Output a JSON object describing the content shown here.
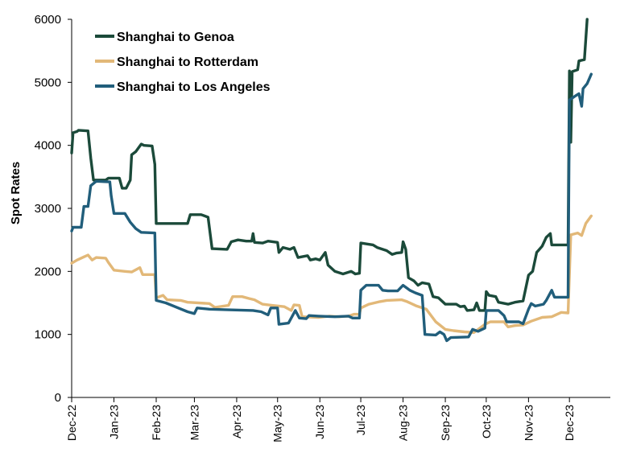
{
  "chart_data": {
    "type": "line",
    "title": "",
    "xlabel": "",
    "ylabel": "Spot Rates",
    "ylim": [
      0,
      6000
    ],
    "yticks": [
      0,
      1000,
      2000,
      3000,
      4000,
      5000,
      6000
    ],
    "xlim": [
      "2022-12-01",
      "2023-12-31"
    ],
    "xticks": [
      {
        "date": "2022-12-01",
        "label": "Dec-22"
      },
      {
        "date": "2023-01-01",
        "label": "Jan-23"
      },
      {
        "date": "2023-02-01",
        "label": "Feb-23"
      },
      {
        "date": "2023-03-01",
        "label": "Mar-23"
      },
      {
        "date": "2023-04-01",
        "label": "Apr-23"
      },
      {
        "date": "2023-05-01",
        "label": "May-23"
      },
      {
        "date": "2023-06-01",
        "label": "Jun-23"
      },
      {
        "date": "2023-07-01",
        "label": "Jul-23"
      },
      {
        "date": "2023-08-01",
        "label": "Aug-23"
      },
      {
        "date": "2023-09-01",
        "label": "Sep-23"
      },
      {
        "date": "2023-10-01",
        "label": "Oct-23"
      },
      {
        "date": "2023-11-01",
        "label": "Nov-23"
      },
      {
        "date": "2023-12-01",
        "label": "Dec-23"
      }
    ],
    "grid": false,
    "legend": "top-left",
    "series": [
      {
        "name": "Shanghai to Genoa",
        "color": "#1b4a3a",
        "points": [
          [
            "2022-12-01",
            3880
          ],
          [
            "2022-12-02",
            4200
          ],
          [
            "2022-12-05",
            4220
          ],
          [
            "2022-12-06",
            4240
          ],
          [
            "2022-12-13",
            4230
          ],
          [
            "2022-12-15",
            3800
          ],
          [
            "2022-12-17",
            3450
          ],
          [
            "2022-12-26",
            3450
          ],
          [
            "2022-12-28",
            3480
          ],
          [
            "2023-01-05",
            3480
          ],
          [
            "2023-01-07",
            3320
          ],
          [
            "2023-01-10",
            3320
          ],
          [
            "2023-01-13",
            3450
          ],
          [
            "2023-01-14",
            3850
          ],
          [
            "2023-01-17",
            3900
          ],
          [
            "2023-01-21",
            4020
          ],
          [
            "2023-01-23",
            4000
          ],
          [
            "2023-01-29",
            3990
          ],
          [
            "2023-01-31",
            3700
          ],
          [
            "2023-02-01",
            2760
          ],
          [
            "2023-02-24",
            2760
          ],
          [
            "2023-02-26",
            2900
          ],
          [
            "2023-03-06",
            2900
          ],
          [
            "2023-03-11",
            2860
          ],
          [
            "2023-03-14",
            2360
          ],
          [
            "2023-03-25",
            2350
          ],
          [
            "2023-03-28",
            2470
          ],
          [
            "2023-04-02",
            2500
          ],
          [
            "2023-04-08",
            2480
          ],
          [
            "2023-04-12",
            2480
          ],
          [
            "2023-04-13",
            2600
          ],
          [
            "2023-04-14",
            2460
          ],
          [
            "2023-04-20",
            2450
          ],
          [
            "2023-04-24",
            2480
          ],
          [
            "2023-05-01",
            2460
          ],
          [
            "2023-05-02",
            2300
          ],
          [
            "2023-05-05",
            2380
          ],
          [
            "2023-05-10",
            2350
          ],
          [
            "2023-05-13",
            2380
          ],
          [
            "2023-05-16",
            2220
          ],
          [
            "2023-05-23",
            2250
          ],
          [
            "2023-05-25",
            2180
          ],
          [
            "2023-05-29",
            2200
          ],
          [
            "2023-06-01",
            2180
          ],
          [
            "2023-06-05",
            2300
          ],
          [
            "2023-06-07",
            2100
          ],
          [
            "2023-06-12",
            2000
          ],
          [
            "2023-06-18",
            1960
          ],
          [
            "2023-06-24",
            2000
          ],
          [
            "2023-06-27",
            1960
          ],
          [
            "2023-06-30",
            1970
          ],
          [
            "2023-07-01",
            2450
          ],
          [
            "2023-07-10",
            2420
          ],
          [
            "2023-07-13",
            2380
          ],
          [
            "2023-07-20",
            2330
          ],
          [
            "2023-07-24",
            2270
          ],
          [
            "2023-07-27",
            2290
          ],
          [
            "2023-07-31",
            2300
          ],
          [
            "2023-08-01",
            2470
          ],
          [
            "2023-08-03",
            2350
          ],
          [
            "2023-08-05",
            1900
          ],
          [
            "2023-08-09",
            1850
          ],
          [
            "2023-08-12",
            1780
          ],
          [
            "2023-08-15",
            1820
          ],
          [
            "2023-08-20",
            1800
          ],
          [
            "2023-08-23",
            1600
          ],
          [
            "2023-08-27",
            1580
          ],
          [
            "2023-09-01",
            1480
          ],
          [
            "2023-09-09",
            1480
          ],
          [
            "2023-09-12",
            1440
          ],
          [
            "2023-09-15",
            1450
          ],
          [
            "2023-09-17",
            1380
          ],
          [
            "2023-09-22",
            1390
          ],
          [
            "2023-09-24",
            1500
          ],
          [
            "2023-09-26",
            1380
          ],
          [
            "2023-09-30",
            1380
          ],
          [
            "2023-10-01",
            1680
          ],
          [
            "2023-10-03",
            1620
          ],
          [
            "2023-10-08",
            1600
          ],
          [
            "2023-10-10",
            1510
          ],
          [
            "2023-10-17",
            1480
          ],
          [
            "2023-10-22",
            1510
          ],
          [
            "2023-10-28",
            1530
          ],
          [
            "2023-11-01",
            1940
          ],
          [
            "2023-11-04",
            2000
          ],
          [
            "2023-11-07",
            2300
          ],
          [
            "2023-11-11",
            2400
          ],
          [
            "2023-11-14",
            2540
          ],
          [
            "2023-11-17",
            2600
          ],
          [
            "2023-11-18",
            2420
          ],
          [
            "2023-11-30",
            2420
          ],
          [
            "2023-12-01",
            5180
          ],
          [
            "2023-12-02",
            4050
          ],
          [
            "2023-12-03",
            5170
          ],
          [
            "2023-12-07",
            5200
          ],
          [
            "2023-12-08",
            5340
          ],
          [
            "2023-12-12",
            5360
          ],
          [
            "2023-12-14",
            6000
          ]
        ]
      },
      {
        "name": "Shanghai to Rotterdam",
        "color": "#e2b878",
        "points": [
          [
            "2022-12-01",
            2130
          ],
          [
            "2022-12-05",
            2180
          ],
          [
            "2022-12-10",
            2230
          ],
          [
            "2022-12-13",
            2260
          ],
          [
            "2022-12-16",
            2180
          ],
          [
            "2022-12-19",
            2220
          ],
          [
            "2022-12-26",
            2210
          ],
          [
            "2022-12-28",
            2140
          ],
          [
            "2023-01-01",
            2020
          ],
          [
            "2023-01-09",
            2000
          ],
          [
            "2023-01-14",
            1990
          ],
          [
            "2023-01-20",
            2060
          ],
          [
            "2023-01-22",
            1950
          ],
          [
            "2023-01-31",
            1950
          ],
          [
            "2023-02-01",
            1580
          ],
          [
            "2023-02-06",
            1620
          ],
          [
            "2023-02-09",
            1550
          ],
          [
            "2023-02-19",
            1540
          ],
          [
            "2023-02-24",
            1510
          ],
          [
            "2023-03-12",
            1490
          ],
          [
            "2023-03-16",
            1430
          ],
          [
            "2023-03-26",
            1460
          ],
          [
            "2023-03-29",
            1600
          ],
          [
            "2023-04-05",
            1600
          ],
          [
            "2023-04-10",
            1570
          ],
          [
            "2023-04-14",
            1550
          ],
          [
            "2023-04-20",
            1480
          ],
          [
            "2023-04-27",
            1460
          ],
          [
            "2023-05-06",
            1440
          ],
          [
            "2023-05-11",
            1380
          ],
          [
            "2023-05-13",
            1470
          ],
          [
            "2023-05-17",
            1460
          ],
          [
            "2023-05-19",
            1280
          ],
          [
            "2023-05-31",
            1270
          ],
          [
            "2023-06-08",
            1290
          ],
          [
            "2023-06-15",
            1280
          ],
          [
            "2023-06-22",
            1290
          ],
          [
            "2023-06-26",
            1320
          ],
          [
            "2023-06-30",
            1320
          ],
          [
            "2023-07-01",
            1420
          ],
          [
            "2023-07-07",
            1480
          ],
          [
            "2023-07-15",
            1520
          ],
          [
            "2023-07-20",
            1540
          ],
          [
            "2023-07-31",
            1550
          ],
          [
            "2023-08-04",
            1520
          ],
          [
            "2023-08-11",
            1450
          ],
          [
            "2023-08-18",
            1400
          ],
          [
            "2023-08-25",
            1200
          ],
          [
            "2023-09-01",
            1080
          ],
          [
            "2023-09-07",
            1060
          ],
          [
            "2023-09-15",
            1040
          ],
          [
            "2023-09-22",
            1030
          ],
          [
            "2023-09-30",
            1160
          ],
          [
            "2023-10-04",
            1200
          ],
          [
            "2023-10-14",
            1200
          ],
          [
            "2023-10-17",
            1120
          ],
          [
            "2023-10-22",
            1140
          ],
          [
            "2023-10-28",
            1150
          ],
          [
            "2023-11-03",
            1210
          ],
          [
            "2023-11-11",
            1270
          ],
          [
            "2023-11-18",
            1280
          ],
          [
            "2023-11-25",
            1350
          ],
          [
            "2023-11-30",
            1340
          ],
          [
            "2023-12-02",
            2580
          ],
          [
            "2023-12-07",
            2610
          ],
          [
            "2023-12-10",
            2570
          ],
          [
            "2023-12-13",
            2760
          ],
          [
            "2023-12-17",
            2880
          ]
        ]
      },
      {
        "name": "Shanghai to Los Angeles",
        "color": "#215e7b",
        "points": [
          [
            "2022-12-01",
            2640
          ],
          [
            "2022-12-02",
            2700
          ],
          [
            "2022-12-08",
            2700
          ],
          [
            "2022-12-10",
            3030
          ],
          [
            "2022-12-13",
            3030
          ],
          [
            "2022-12-15",
            3360
          ],
          [
            "2022-12-19",
            3430
          ],
          [
            "2022-12-29",
            3420
          ],
          [
            "2022-12-30",
            3200
          ],
          [
            "2023-01-01",
            2920
          ],
          [
            "2023-01-09",
            2920
          ],
          [
            "2023-01-13",
            2780
          ],
          [
            "2023-01-17",
            2680
          ],
          [
            "2023-01-21",
            2620
          ],
          [
            "2023-01-31",
            2610
          ],
          [
            "2023-02-01",
            1540
          ],
          [
            "2023-02-08",
            1500
          ],
          [
            "2023-02-24",
            1360
          ],
          [
            "2023-03-01",
            1330
          ],
          [
            "2023-03-03",
            1420
          ],
          [
            "2023-03-12",
            1400
          ],
          [
            "2023-03-26",
            1390
          ],
          [
            "2023-04-13",
            1380
          ],
          [
            "2023-04-19",
            1360
          ],
          [
            "2023-04-24",
            1310
          ],
          [
            "2023-04-26",
            1420
          ],
          [
            "2023-05-01",
            1420
          ],
          [
            "2023-05-02",
            1160
          ],
          [
            "2023-05-09",
            1180
          ],
          [
            "2023-05-14",
            1380
          ],
          [
            "2023-05-17",
            1260
          ],
          [
            "2023-05-22",
            1250
          ],
          [
            "2023-05-24",
            1300
          ],
          [
            "2023-05-31",
            1290
          ],
          [
            "2023-06-12",
            1280
          ],
          [
            "2023-06-22",
            1290
          ],
          [
            "2023-06-25",
            1260
          ],
          [
            "2023-06-30",
            1260
          ],
          [
            "2023-07-01",
            1700
          ],
          [
            "2023-07-05",
            1780
          ],
          [
            "2023-07-14",
            1780
          ],
          [
            "2023-07-17",
            1700
          ],
          [
            "2023-07-21",
            1690
          ],
          [
            "2023-07-28",
            1690
          ],
          [
            "2023-08-01",
            1780
          ],
          [
            "2023-08-06",
            1700
          ],
          [
            "2023-08-10",
            1660
          ],
          [
            "2023-08-15",
            1620
          ],
          [
            "2023-08-17",
            1000
          ],
          [
            "2023-08-25",
            990
          ],
          [
            "2023-08-28",
            1040
          ],
          [
            "2023-08-31",
            1000
          ],
          [
            "2023-09-02",
            900
          ],
          [
            "2023-09-05",
            950
          ],
          [
            "2023-09-18",
            960
          ],
          [
            "2023-09-21",
            1080
          ],
          [
            "2023-09-25",
            1050
          ],
          [
            "2023-09-30",
            1100
          ],
          [
            "2023-10-01",
            1380
          ],
          [
            "2023-10-10",
            1380
          ],
          [
            "2023-10-14",
            1300
          ],
          [
            "2023-10-16",
            1200
          ],
          [
            "2023-10-25",
            1200
          ],
          [
            "2023-10-28",
            1170
          ],
          [
            "2023-11-01",
            1400
          ],
          [
            "2023-11-03",
            1490
          ],
          [
            "2023-11-06",
            1450
          ],
          [
            "2023-11-12",
            1480
          ],
          [
            "2023-11-14",
            1540
          ],
          [
            "2023-11-18",
            1700
          ],
          [
            "2023-11-20",
            1590
          ],
          [
            "2023-11-30",
            1590
          ],
          [
            "2023-12-01",
            4720
          ],
          [
            "2023-12-05",
            4780
          ],
          [
            "2023-12-08",
            4820
          ],
          [
            "2023-12-10",
            4620
          ],
          [
            "2023-12-11",
            4900
          ],
          [
            "2023-12-14",
            4980
          ],
          [
            "2023-12-17",
            5130
          ]
        ]
      }
    ]
  }
}
